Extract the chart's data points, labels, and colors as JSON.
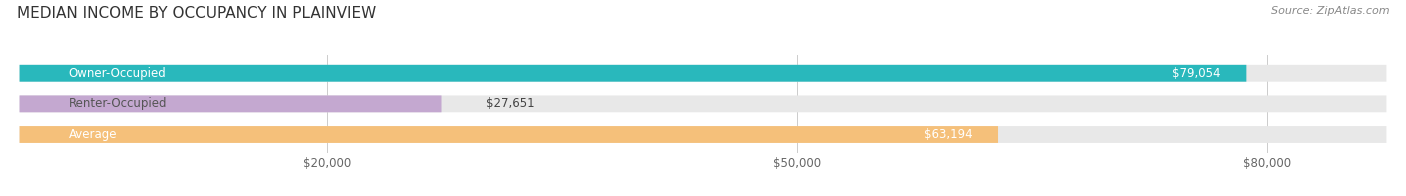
{
  "title": "MEDIAN INCOME BY OCCUPANCY IN PLAINVIEW",
  "source": "Source: ZipAtlas.com",
  "categories": [
    "Owner-Occupied",
    "Renter-Occupied",
    "Average"
  ],
  "values": [
    79054,
    27651,
    63194
  ],
  "bar_colors": [
    "#29b8bc",
    "#c4a8d0",
    "#f5c07a"
  ],
  "bar_bg_color": "#e8e8e8",
  "value_labels": [
    "$79,054",
    "$27,651",
    "$63,194"
  ],
  "xlim": [
    0,
    88000
  ],
  "xticks": [
    20000,
    50000,
    80000
  ],
  "xtick_labels": [
    "$20,000",
    "$50,000",
    "$80,000"
  ],
  "title_fontsize": 11,
  "label_fontsize": 8.5,
  "source_fontsize": 8,
  "background_color": "#ffffff"
}
